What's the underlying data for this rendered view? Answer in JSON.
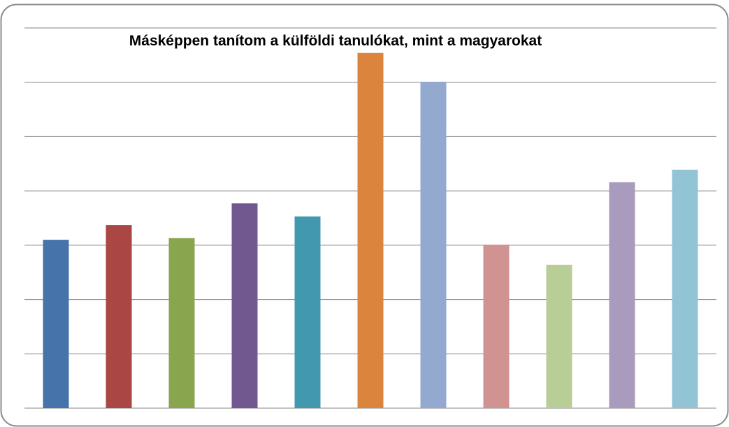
{
  "chart_data": {
    "type": "bar",
    "title": "Másképpen tanítom a külföldi tanulókat, mint a magyarokat",
    "categories": [
      null,
      null,
      null,
      null,
      null,
      null,
      null,
      null,
      null,
      null,
      null
    ],
    "values": [
      3.1,
      3.37,
      3.13,
      3.77,
      3.53,
      6.54,
      6.01,
      3.01,
      2.64,
      4.16,
      4.39
    ],
    "colors": [
      "#4674aa",
      "#aa4644",
      "#89a54e",
      "#71588f",
      "#4198af",
      "#db843d",
      "#93a9cf",
      "#d19392",
      "#b9cd96",
      "#a99bbd",
      "#93c4d6"
    ],
    "ylim": [
      0,
      7
    ],
    "yticks": [
      0,
      1,
      2,
      3,
      4,
      5,
      6,
      7
    ],
    "grid": true
  }
}
